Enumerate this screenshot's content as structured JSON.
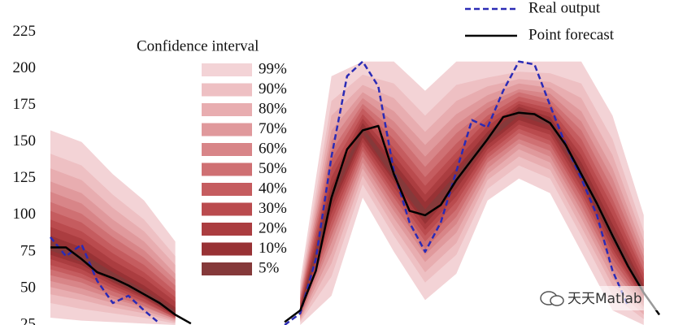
{
  "chart_data": {
    "type": "fan",
    "xlim": [
      0,
      39
    ],
    "ylim": [
      25,
      247
    ],
    "yticks": [
      25,
      50,
      75,
      100,
      125,
      150,
      175,
      200,
      225
    ],
    "x": [
      0,
      1,
      2,
      3,
      4,
      5,
      6,
      7,
      8,
      9,
      10,
      11,
      12,
      13,
      14,
      15,
      16,
      17,
      18,
      19,
      20,
      21,
      22,
      23,
      24,
      25,
      26,
      27,
      28,
      29,
      30,
      31,
      32,
      33,
      34,
      35,
      36,
      37,
      38,
      39
    ],
    "series": [
      {
        "name": "Real output",
        "color": "#2b2bb5",
        "dashed": true,
        "values": [
          85,
          72,
          80,
          55,
          40,
          45,
          35,
          26,
          null,
          null,
          null,
          null,
          null,
          null,
          null,
          25,
          33,
          70,
          140,
          195,
          205,
          188,
          130,
          95,
          75,
          95,
          130,
          165,
          160,
          185,
          205,
          203,
          175,
          148,
          125,
          100,
          62,
          38,
          null,
          null
        ]
      },
      {
        "name": "Point forecast",
        "color": "#000000",
        "dashed": false,
        "values": [
          78,
          78,
          70,
          61,
          57,
          52,
          46,
          40,
          32,
          26,
          null,
          null,
          null,
          null,
          null,
          27,
          35,
          62,
          112,
          145,
          158,
          161,
          128,
          103,
          100,
          107,
          124,
          138,
          152,
          167,
          170,
          169,
          163,
          148,
          128,
          108,
          86,
          65,
          47,
          32
        ]
      }
    ],
    "legend_title": "Confidence interval",
    "band_x": [
      0,
      2,
      4,
      6,
      8,
      10,
      12,
      14,
      16,
      18,
      20,
      22,
      24,
      26,
      28,
      30,
      32,
      34,
      36,
      38
    ],
    "bands": [
      {
        "name": "99%",
        "color": "#f3d3d6",
        "upper": [
          158,
          150,
          128,
          110,
          82,
          null,
          null,
          null,
          55,
          195,
          205,
          205,
          185,
          205,
          205,
          205,
          205,
          205,
          168,
          100
        ],
        "lower": [
          30,
          28,
          27,
          26,
          25,
          null,
          null,
          null,
          25,
          45,
          112,
          75,
          42,
          60,
          110,
          125,
          115,
          75,
          35,
          25
        ]
      },
      {
        "name": "90%",
        "color": "#eec0c3",
        "upper": [
          142,
          134,
          114,
          97,
          72,
          null,
          null,
          null,
          51,
          178,
          196,
          190,
          168,
          189,
          194,
          198,
          197,
          190,
          152,
          89
        ],
        "lower": [
          40,
          36,
          33,
          30,
          26,
          null,
          null,
          null,
          27,
          58,
          121,
          86,
          54,
          73,
          118,
          134,
          125,
          86,
          45,
          29
        ]
      },
      {
        "name": "80%",
        "color": "#e8adb0",
        "upper": [
          132,
          124,
          105,
          89,
          66,
          null,
          null,
          null,
          48,
          168,
          189,
          180,
          157,
          178,
          188,
          193,
          191,
          180,
          141,
          83
        ],
        "lower": [
          46,
          42,
          37,
          33,
          27,
          null,
          null,
          null,
          28,
          67,
          127,
          92,
          61,
          81,
          124,
          140,
          131,
          92,
          52,
          32
        ]
      },
      {
        "name": "70%",
        "color": "#e0999c",
        "upper": [
          123,
          115,
          97,
          82,
          60,
          null,
          null,
          null,
          46,
          158,
          184,
          171,
          148,
          169,
          182,
          190,
          187,
          171,
          132,
          77
        ],
        "lower": [
          51,
          46,
          40,
          35,
          28,
          null,
          null,
          null,
          29,
          74,
          132,
          98,
          68,
          88,
          128,
          145,
          136,
          98,
          57,
          35
        ]
      },
      {
        "name": "60%",
        "color": "#d88588",
        "upper": [
          116,
          108,
          90,
          76,
          56,
          null,
          null,
          null,
          44,
          151,
          180,
          164,
          140,
          162,
          177,
          186,
          183,
          164,
          125,
          72
        ],
        "lower": [
          55,
          50,
          43,
          37,
          29,
          null,
          null,
          null,
          30,
          81,
          136,
          103,
          73,
          94,
          132,
          149,
          140,
          103,
          62,
          37
        ]
      },
      {
        "name": "50%",
        "color": "#cf7073",
        "upper": [
          109,
          101,
          85,
          71,
          52,
          null,
          null,
          null,
          43,
          144,
          176,
          158,
          133,
          156,
          173,
          184,
          179,
          158,
          118,
          68
        ],
        "lower": [
          59,
          54,
          45,
          38,
          29,
          null,
          null,
          null,
          31,
          86,
          140,
          107,
          77,
          99,
          136,
          152,
          144,
          107,
          66,
          38
        ]
      },
      {
        "name": "40%",
        "color": "#c55c5f",
        "upper": [
          103,
          95,
          79,
          66,
          48,
          null,
          null,
          null,
          41,
          138,
          173,
          152,
          126,
          149,
          168,
          181,
          176,
          152,
          111,
          63
        ],
        "lower": [
          63,
          57,
          48,
          40,
          30,
          null,
          null,
          null,
          32,
          91,
          144,
          112,
          82,
          104,
          139,
          156,
          148,
          112,
          70,
          40
        ]
      },
      {
        "name": "30%",
        "color": "#ba4b4e",
        "upper": [
          97,
          89,
          74,
          61,
          44,
          null,
          null,
          null,
          40,
          132,
          169,
          146,
          120,
          143,
          165,
          178,
          173,
          146,
          106,
          60
        ],
        "lower": [
          66,
          60,
          50,
          41,
          30,
          null,
          null,
          null,
          33,
          96,
          147,
          115,
          86,
          109,
          142,
          159,
          151,
          115,
          74,
          42
        ]
      },
      {
        "name": "20%",
        "color": "#ab3d40",
        "upper": [
          92,
          84,
          69,
          57,
          41,
          null,
          null,
          null,
          38,
          126,
          166,
          141,
          114,
          138,
          161,
          176,
          170,
          141,
          100,
          56
        ],
        "lower": [
          70,
          63,
          52,
          43,
          31,
          null,
          null,
          null,
          33,
          101,
          150,
          119,
          90,
          113,
          145,
          162,
          155,
          119,
          77,
          43
        ]
      },
      {
        "name": "10%",
        "color": "#983235",
        "upper": [
          86,
          78,
          64,
          52,
          37,
          null,
          null,
          null,
          37,
          120,
          163,
          136,
          109,
          132,
          157,
          174,
          167,
          136,
          94,
          52
        ],
        "lower": [
          73,
          66,
          54,
          44,
          31,
          null,
          null,
          null,
          34,
          105,
          153,
          123,
          94,
          118,
          148,
          165,
          158,
          123,
          81,
          45
        ]
      },
      {
        "name": "5%",
        "color": "#85393a",
        "upper": [
          82,
          74,
          61,
          49,
          35,
          null,
          null,
          null,
          36,
          116,
          160,
          132,
          104,
          128,
          155,
          172,
          165,
          132,
          90,
          50
        ],
        "lower": [
          76,
          68,
          55,
          45,
          32,
          null,
          null,
          null,
          34,
          109,
          156,
          125,
          97,
          121,
          150,
          168,
          161,
          125,
          83,
          46
        ]
      }
    ],
    "watermark": "天天Matlab"
  }
}
